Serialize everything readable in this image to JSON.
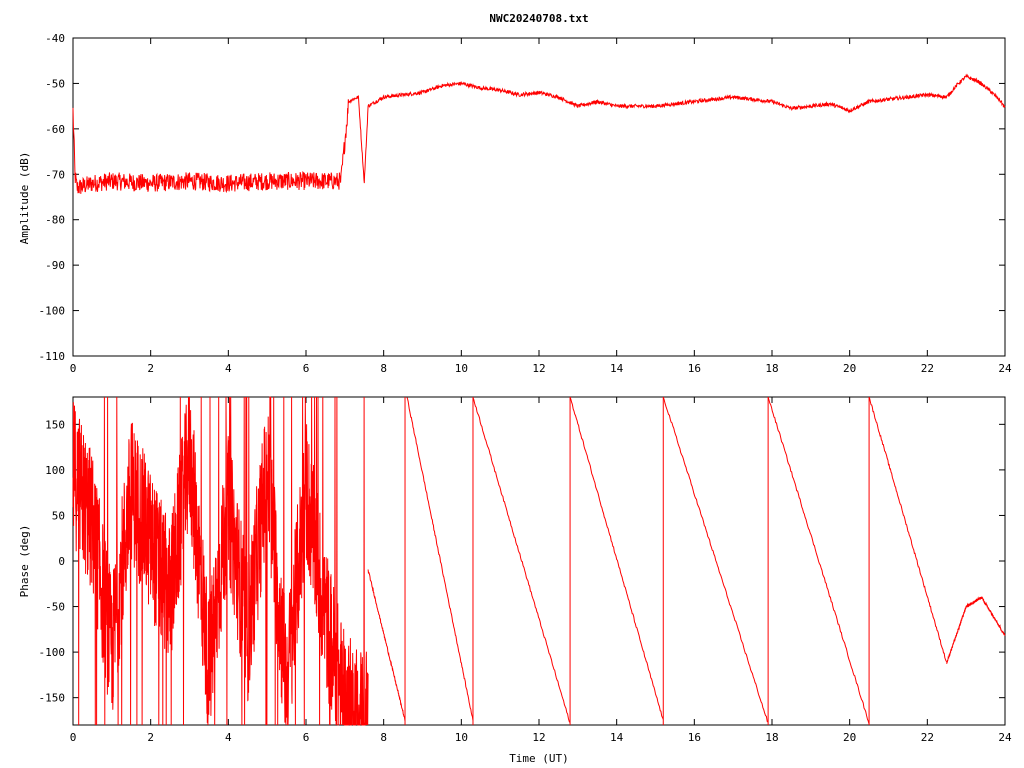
{
  "title": "NWC20240708.txt",
  "colors": {
    "series": "#ff0000",
    "axes": "#000000",
    "background": "#ffffff"
  },
  "chart_data": [
    {
      "type": "line",
      "title": "NWC20240708.txt",
      "xlabel": "",
      "ylabel": "Amplitude (dB)",
      "xlim": [
        0,
        24
      ],
      "ylim": [
        -110,
        -40
      ],
      "xticks": [
        "0",
        "2",
        "4",
        "6",
        "8",
        "10",
        "12",
        "14",
        "16",
        "18",
        "20",
        "22",
        "24"
      ],
      "yticks": [
        "-40",
        "-50",
        "-60",
        "-70",
        "-80",
        "-90",
        "-100",
        "-110"
      ],
      "grid": false,
      "x": [
        0,
        0.05,
        0.1,
        0.5,
        1,
        2,
        3,
        4,
        5,
        6,
        6.9,
        7.1,
        7.2,
        7.35,
        7.5,
        7.6,
        7.8,
        8,
        9,
        9.5,
        10,
        10.5,
        11,
        11.5,
        12,
        12.5,
        13,
        13.5,
        14,
        14.5,
        15,
        15.5,
        16,
        16.5,
        17,
        17.5,
        18,
        18.5,
        19,
        19.5,
        20,
        20.5,
        21,
        21.5,
        22,
        22.5,
        22.8,
        23,
        23.3,
        23.6,
        23.9,
        24
      ],
      "y": [
        -56,
        -70,
        -73,
        -72,
        -71.5,
        -72,
        -71.5,
        -72,
        -71.5,
        -71.5,
        -71.5,
        -54,
        -53.5,
        -53,
        -72,
        -55,
        -54,
        -53,
        -52,
        -50.5,
        -50,
        -51,
        -51.5,
        -52.5,
        -52,
        -53,
        -55,
        -54,
        -55,
        -55,
        -55,
        -54.5,
        -54,
        -53.5,
        -53,
        -53.5,
        -54,
        -55.5,
        -55,
        -54.5,
        -56,
        -54,
        -53.5,
        -53,
        -52.5,
        -53,
        -50,
        -48.5,
        -49.5,
        -51.5,
        -54,
        -55.5
      ]
    },
    {
      "type": "line",
      "title": "",
      "xlabel": "Time (UT)",
      "ylabel": "Phase (deg)",
      "xlim": [
        0,
        24
      ],
      "ylim": [
        -180,
        180
      ],
      "xticks": [
        "0",
        "2",
        "4",
        "6",
        "8",
        "10",
        "12",
        "14",
        "16",
        "18",
        "20",
        "22",
        "24"
      ],
      "yticks": [
        "150",
        "100",
        "50",
        "0",
        "-50",
        "-100",
        "-150"
      ],
      "grid": false,
      "noisy_segment": {
        "x_range": [
          0,
          7.6
        ],
        "y_range": [
          -180,
          180
        ],
        "description_points": [
          [
            0,
            100
          ],
          [
            0.5,
            40
          ],
          [
            1,
            -100
          ],
          [
            1.5,
            80
          ],
          [
            2,
            20
          ],
          [
            2.5,
            -40
          ],
          [
            3,
            120
          ],
          [
            3.5,
            -120
          ],
          [
            4,
            60
          ],
          [
            4.5,
            -80
          ],
          [
            5,
            100
          ],
          [
            5.5,
            -140
          ],
          [
            6,
            80
          ],
          [
            6.5,
            -60
          ],
          [
            7,
            -160
          ],
          [
            7.5,
            -170
          ]
        ]
      },
      "ramps": [
        {
          "x": [
            7.6,
            8.55
          ],
          "y": [
            -10,
            -175
          ]
        },
        {
          "x": [
            8.6,
            10.3
          ],
          "y": [
            180,
            -175
          ]
        },
        {
          "x": [
            10.3,
            12.8
          ],
          "y": [
            180,
            -178
          ]
        },
        {
          "x": [
            12.8,
            15.2
          ],
          "y": [
            180,
            -175
          ]
        },
        {
          "x": [
            15.2,
            17.9
          ],
          "y": [
            180,
            -178
          ]
        },
        {
          "x": [
            17.9,
            20.5
          ],
          "y": [
            180,
            -178
          ]
        },
        {
          "x": [
            20.5,
            22.5
          ],
          "y": [
            180,
            -112
          ]
        },
        {
          "x": [
            22.5,
            23.0
          ],
          "y": [
            -112,
            -50
          ]
        },
        {
          "x": [
            23.0,
            23.4
          ],
          "y": [
            -50,
            -40
          ]
        },
        {
          "x": [
            23.4,
            24.0
          ],
          "y": [
            -40,
            -82
          ]
        }
      ],
      "wraps_at": [
        8.55,
        10.3,
        12.8,
        15.2,
        17.9,
        20.5
      ]
    }
  ]
}
